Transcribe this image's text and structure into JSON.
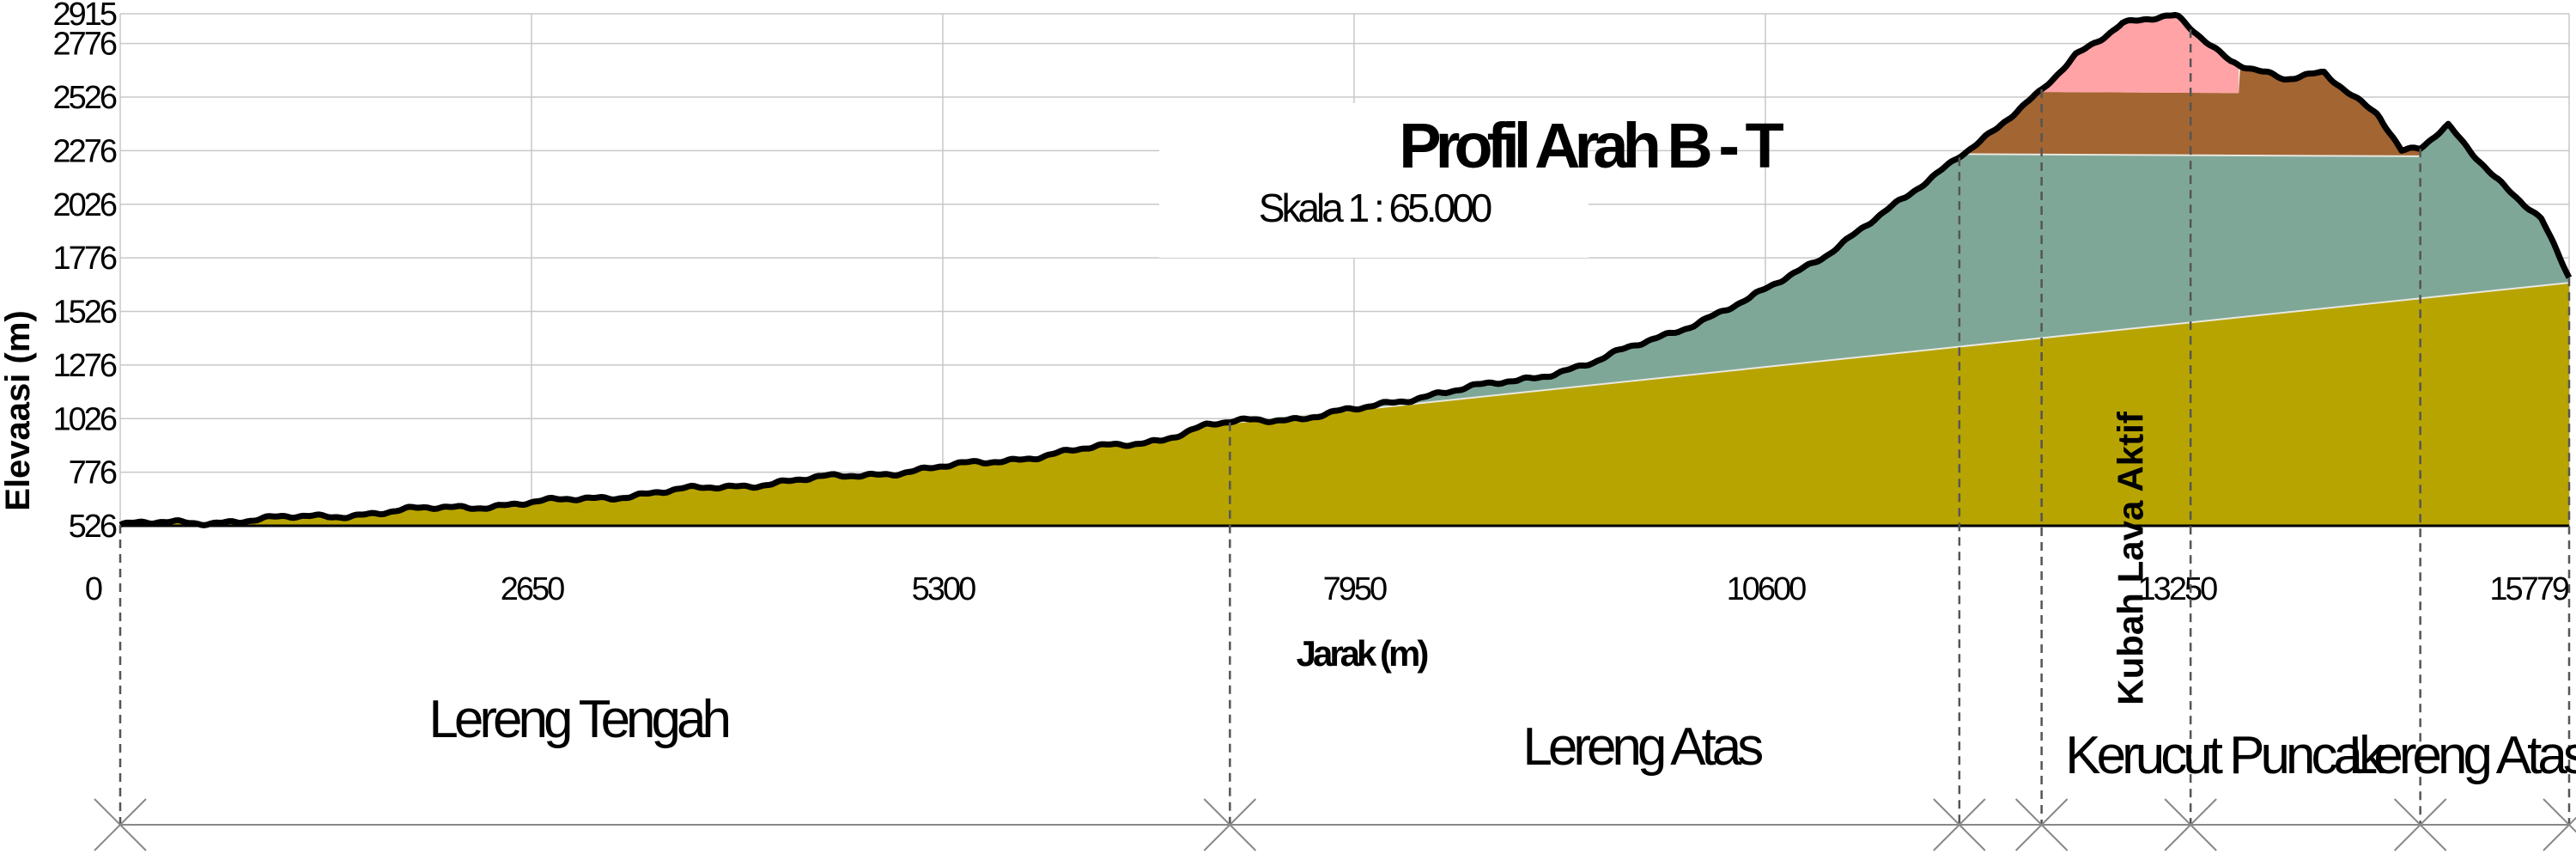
{
  "chart_data": {
    "type": "area",
    "title": "Profil Arah B - T",
    "subtitle": "Skala 1 : 65.000",
    "xlabel": "Jarak (m)",
    "ylabel": "Elevaasi (m)",
    "xlim": [
      0,
      15779
    ],
    "ylim": [
      526,
      2915
    ],
    "x_ticks": [
      "0",
      "2650",
      "5300",
      "7950",
      "10600",
      "13250",
      "15779"
    ],
    "x_tick_values": [
      0,
      2650,
      5300,
      7950,
      10600,
      13250,
      15779
    ],
    "y_ticks": [
      "526",
      "776",
      "1026",
      "1276",
      "1526",
      "1776",
      "2026",
      "2276",
      "2526",
      "2776",
      "2915"
    ],
    "y_tick_values": [
      526,
      776,
      1026,
      1276,
      1526,
      1776,
      2026,
      2276,
      2526,
      2776,
      2915
    ],
    "grid": true,
    "profile": [
      [
        0,
        530
      ],
      [
        600,
        545
      ],
      [
        1300,
        570
      ],
      [
        2000,
        605
      ],
      [
        2800,
        640
      ],
      [
        3600,
        690
      ],
      [
        4400,
        740
      ],
      [
        5200,
        790
      ],
      [
        6000,
        860
      ],
      [
        6700,
        930
      ],
      [
        7000,
        990
      ],
      [
        7150,
        1005
      ],
      [
        7300,
        1020
      ],
      [
        7600,
        1030
      ],
      [
        8000,
        1070
      ],
      [
        8500,
        1150
      ],
      [
        9000,
        1200
      ],
      [
        9500,
        1290
      ],
      [
        10000,
        1430
      ],
      [
        10500,
        1580
      ],
      [
        11000,
        1800
      ],
      [
        11500,
        2050
      ],
      [
        11850,
        2260
      ],
      [
        12100,
        2380
      ],
      [
        12380,
        2550
      ],
      [
        12600,
        2730
      ],
      [
        12900,
        2870
      ],
      [
        13250,
        2900
      ],
      [
        13600,
        2700
      ],
      [
        13950,
        2600
      ],
      [
        14200,
        2640
      ],
      [
        14550,
        2450
      ],
      [
        14700,
        2270
      ],
      [
        14820,
        2280
      ],
      [
        15000,
        2390
      ],
      [
        15300,
        2160
      ],
      [
        15600,
        1950
      ],
      [
        15779,
        1680
      ]
    ],
    "layers": [
      {
        "name": "Lereng Tengah",
        "color": "#b8a400"
      },
      {
        "name": "Lereng Atas",
        "color": "#7fa797"
      },
      {
        "name": "Kerucut Puncak",
        "color": "#a36532"
      },
      {
        "name": "Kubah Lava Aktif",
        "color": "#ffa3a6"
      }
    ],
    "base_surface": [
      [
        0,
        526
      ],
      [
        7150,
        1005
      ],
      [
        15779,
        1660
      ]
    ],
    "lereng_atas_top": [
      [
        11850,
        2260
      ],
      [
        14820,
        2250
      ]
    ],
    "kerucut_top": [
      [
        12380,
        2550
      ],
      [
        13650,
        2545
      ]
    ],
    "zone_boundaries": [
      0,
      7150,
      11850,
      12380,
      13340,
      14820,
      15779
    ],
    "zones": [
      {
        "label": "Lereng Tengah",
        "center": 2950,
        "orientation": "horizontal"
      },
      {
        "label": "Lereng Atas",
        "center": 9800,
        "orientation": "horizontal"
      },
      {
        "label": "Kubah Lava Aktif",
        "center": 12950,
        "orientation": "vertical"
      },
      {
        "label": "Kerucut Puncak",
        "center": 13550,
        "orientation": "horizontal"
      },
      {
        "label": "Lereng Atas",
        "center": 15120,
        "orientation": "horizontal"
      }
    ]
  }
}
